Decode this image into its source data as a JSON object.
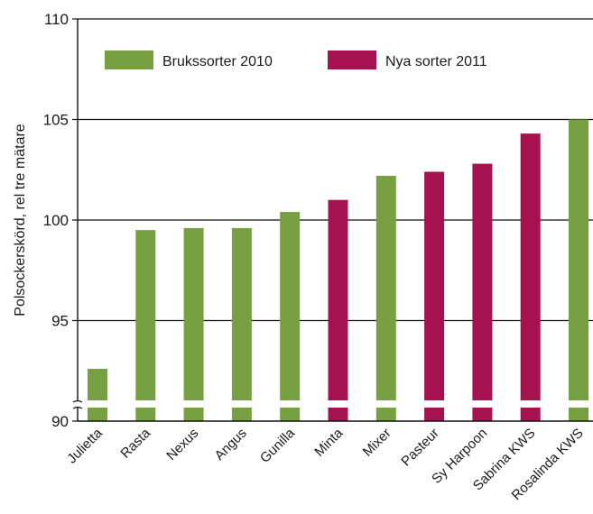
{
  "chart_data": {
    "type": "bar",
    "ylabel": "Polsockerskörd, rel tre mätare",
    "xlabel": "",
    "ylim": [
      90,
      110
    ],
    "yticks": [
      90,
      95,
      100,
      105,
      110
    ],
    "axis_break": true,
    "grid": true,
    "legend_position": "top",
    "series": [
      {
        "name": "Brukssorter 2010",
        "color": "#77a043"
      },
      {
        "name": "Nya sorter 2011",
        "color": "#a6124f"
      }
    ],
    "categories": [
      "Julietta",
      "Rasta",
      "Nexus",
      "Angus",
      "Gunilla",
      "Minta",
      "Mixer",
      "Pasteur",
      "Sy Harpoon",
      "Sabrina KWS",
      "Rosalinda KWS"
    ],
    "values": [
      92.6,
      99.5,
      99.6,
      99.6,
      100.4,
      101.0,
      102.2,
      102.4,
      102.8,
      104.3,
      105.0
    ],
    "series_index": [
      0,
      0,
      0,
      0,
      0,
      1,
      0,
      1,
      1,
      1,
      0
    ]
  }
}
